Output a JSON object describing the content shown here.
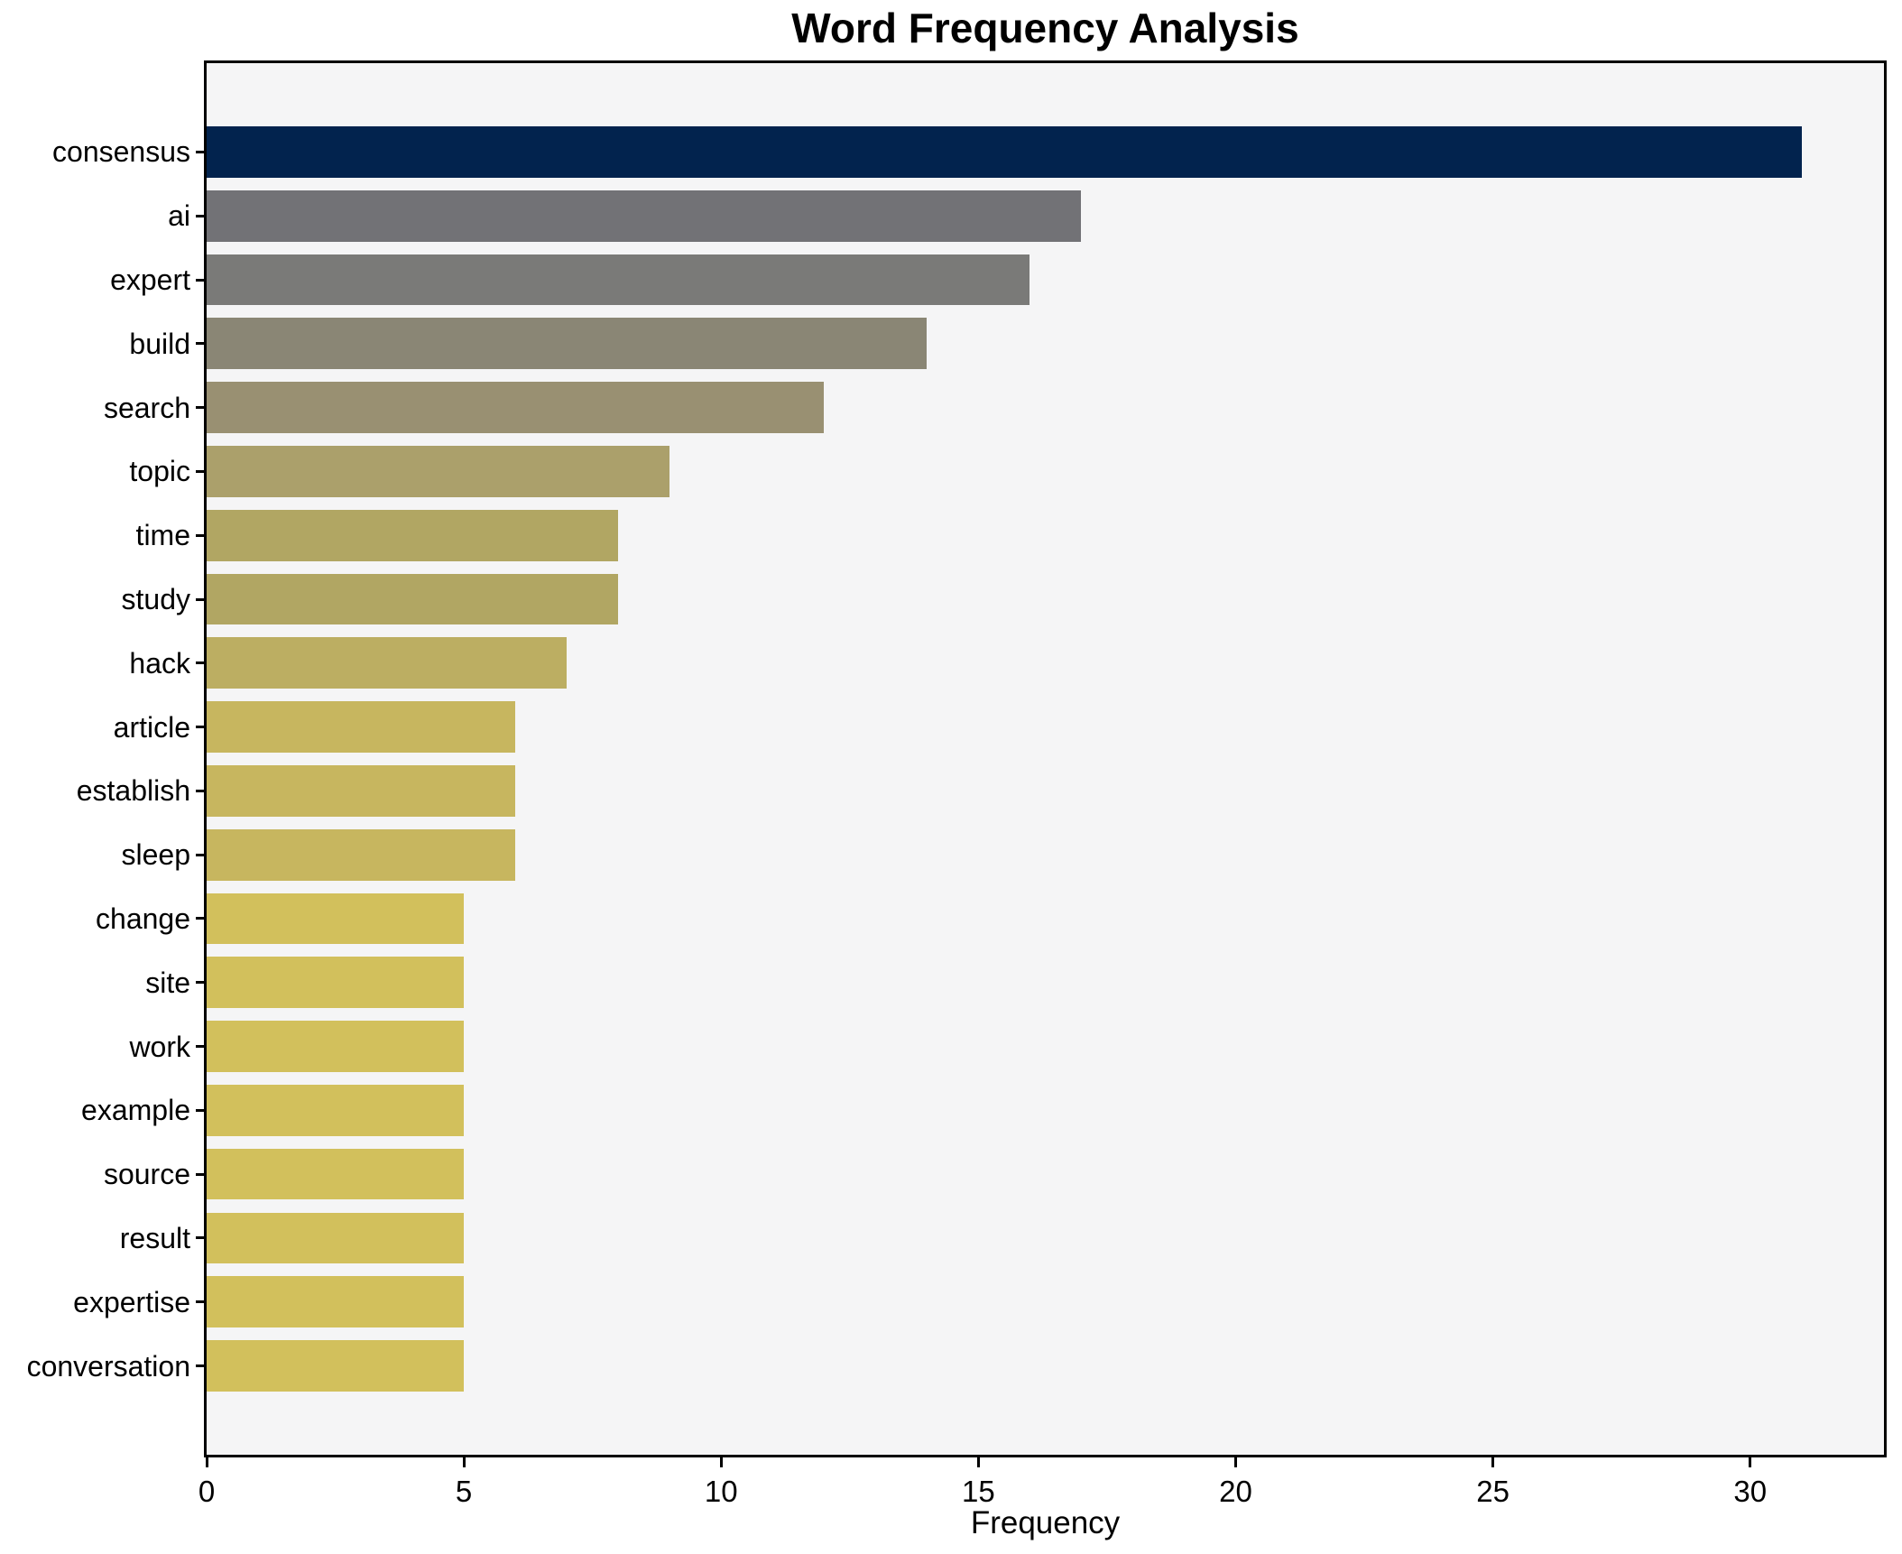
{
  "chart_data": {
    "type": "bar",
    "orientation": "horizontal",
    "title": "Word Frequency Analysis",
    "xlabel": "Frequency",
    "ylabel": "",
    "categories": [
      "consensus",
      "ai",
      "expert",
      "build",
      "search",
      "topic",
      "time",
      "study",
      "hack",
      "article",
      "establish",
      "sleep",
      "change",
      "site",
      "work",
      "example",
      "source",
      "result",
      "expertise",
      "conversation"
    ],
    "values": [
      31,
      17,
      16,
      14,
      12,
      9,
      8,
      8,
      7,
      6,
      6,
      6,
      5,
      5,
      5,
      5,
      5,
      5,
      5,
      5
    ],
    "bar_colors": [
      "#02234e",
      "#727276",
      "#7a7a78",
      "#8a8675",
      "#999072",
      "#aba06b",
      "#b1a663",
      "#b1a663",
      "#bcae62",
      "#c7b65f",
      "#c7b65f",
      "#c7b65f",
      "#d2c05c",
      "#d2c05c",
      "#d2c05c",
      "#d2c05c",
      "#d2c05c",
      "#d2c05c",
      "#d2c05c",
      "#d2c05c"
    ],
    "x_ticks": [
      0,
      5,
      10,
      15,
      20,
      25,
      30
    ],
    "xlim": [
      0,
      32.6
    ],
    "bar_width_fraction": 0.8,
    "y_units_span": 21.78,
    "y_offset_units": 1.39,
    "grid": false,
    "legend": false,
    "plot_bg": "#f5f5f6",
    "spine_color": "#000000"
  }
}
